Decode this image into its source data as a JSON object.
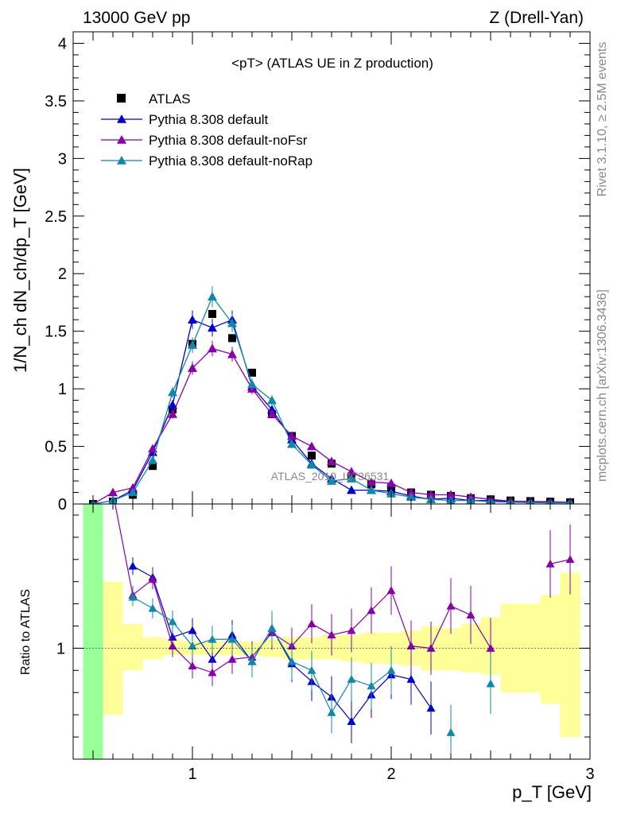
{
  "header": {
    "left": "13000 GeV pp",
    "right": "Z (Drell-Yan)"
  },
  "side": {
    "rivet": "Rivet 3.1.10, ≥ 2.5M events",
    "site": "mcplots.cern.ch [arXiv:1306.3436]"
  },
  "watermark": "ATLAS_2019_I1736531",
  "chart_data": [
    {
      "type": "line",
      "panel": "main",
      "title": "<pT> (ATLAS UE in Z production)",
      "ylabel": "1/N_ch dN_ch/dp_T [GeV]",
      "xlim": [
        0.4,
        3.0
      ],
      "ylim": [
        0,
        4.1
      ],
      "y_ticks": [
        0,
        0.5,
        1,
        1.5,
        2,
        2.5,
        3,
        3.5,
        4
      ],
      "x": [
        0.5,
        0.6,
        0.7,
        0.8,
        0.9,
        1.0,
        1.1,
        1.2,
        1.3,
        1.4,
        1.5,
        1.6,
        1.7,
        1.8,
        1.9,
        2.0,
        2.1,
        2.2,
        2.3,
        2.4,
        2.5,
        2.6,
        2.7,
        2.8,
        2.9
      ],
      "series": [
        {
          "name": "ATLAS",
          "color": "#000000",
          "marker": "square",
          "values": [
            0.0,
            0.02,
            0.08,
            0.33,
            0.82,
            1.39,
            1.65,
            1.44,
            1.14,
            0.78,
            0.59,
            0.42,
            0.35,
            0.24,
            0.17,
            0.14,
            0.1,
            0.08,
            0.07,
            0.05,
            0.04,
            0.03,
            0.025,
            0.02,
            0.015
          ]
        },
        {
          "name": "Pythia 8.308 default",
          "color": "#0000cc",
          "marker": "triangle",
          "values": [
            0.0,
            0.03,
            0.12,
            0.45,
            0.86,
            1.6,
            1.53,
            1.6,
            1.02,
            0.82,
            0.56,
            0.35,
            0.22,
            0.12,
            0.12,
            0.11,
            0.07,
            0.04,
            0.05,
            0.03,
            0.03,
            0.02,
            0.01,
            0.018,
            0.01
          ]
        },
        {
          "name": "Pythia 8.308 default-noFsr",
          "color": "#8800aa",
          "marker": "triangle",
          "values": [
            0.0,
            0.1,
            0.14,
            0.48,
            0.78,
            1.18,
            1.35,
            1.3,
            1.0,
            0.78,
            0.59,
            0.5,
            0.37,
            0.28,
            0.19,
            0.18,
            0.1,
            0.08,
            0.08,
            0.06,
            0.04,
            0.025,
            0.022,
            0.02,
            0.015
          ]
        },
        {
          "name": "Pythia 8.308 default-noRap",
          "color": "#1188aa",
          "marker": "triangle",
          "values": [
            0.0,
            0.03,
            0.1,
            0.38,
            0.97,
            1.38,
            1.8,
            1.57,
            1.04,
            0.9,
            0.52,
            0.34,
            0.2,
            0.22,
            0.12,
            0.09,
            0.06,
            0.04,
            0.03,
            0.03,
            0.02,
            0.015,
            0.012,
            0.01,
            0.01
          ]
        }
      ]
    },
    {
      "type": "line",
      "panel": "ratio",
      "ylabel": "Ratio to ATLAS",
      "xlabel": "p_T [GeV]",
      "xlim": [
        0.4,
        3.0
      ],
      "ylim": [
        0.5,
        1.65
      ],
      "x_ticks": [
        1,
        2,
        3
      ],
      "y_ticks": [
        1
      ],
      "x": [
        0.5,
        0.6,
        0.7,
        0.8,
        0.9,
        1.0,
        1.1,
        1.2,
        1.3,
        1.4,
        1.5,
        1.6,
        1.7,
        1.8,
        1.9,
        2.0,
        2.1,
        2.2,
        2.3,
        2.4,
        2.5,
        2.6,
        2.7,
        2.8,
        2.9
      ],
      "uncertainty_band": {
        "colors": {
          "stat": "#ffff99",
          "leading": "#99ff99"
        },
        "bins": [
          {
            "lo": 0.45,
            "hi": 0.55,
            "down": 0.5,
            "up": 1.65,
            "color": "#99ff99"
          },
          {
            "lo": 0.55,
            "hi": 0.65,
            "down": 0.7,
            "up": 1.3
          },
          {
            "lo": 0.65,
            "hi": 0.75,
            "down": 0.9,
            "up": 1.11
          },
          {
            "lo": 0.75,
            "hi": 0.85,
            "down": 0.95,
            "up": 1.05
          },
          {
            "lo": 0.85,
            "hi": 0.95,
            "down": 0.97,
            "up": 1.04
          },
          {
            "lo": 0.95,
            "hi": 1.05,
            "down": 0.97,
            "up": 1.03
          },
          {
            "lo": 1.05,
            "hi": 1.15,
            "down": 0.97,
            "up": 1.03
          },
          {
            "lo": 1.15,
            "hi": 1.25,
            "down": 0.97,
            "up": 1.03
          },
          {
            "lo": 1.25,
            "hi": 1.35,
            "down": 0.97,
            "up": 1.03
          },
          {
            "lo": 1.35,
            "hi": 1.45,
            "down": 0.96,
            "up": 1.04
          },
          {
            "lo": 1.45,
            "hi": 1.55,
            "down": 0.95,
            "up": 1.05
          },
          {
            "lo": 1.55,
            "hi": 1.65,
            "down": 0.95,
            "up": 1.05
          },
          {
            "lo": 1.65,
            "hi": 1.75,
            "down": 0.95,
            "up": 1.06
          },
          {
            "lo": 1.75,
            "hi": 1.85,
            "down": 0.94,
            "up": 1.06
          },
          {
            "lo": 1.85,
            "hi": 1.95,
            "down": 0.93,
            "up": 1.07
          },
          {
            "lo": 1.95,
            "hi": 2.05,
            "down": 0.93,
            "up": 1.07
          },
          {
            "lo": 2.05,
            "hi": 2.15,
            "down": 0.92,
            "up": 1.08
          },
          {
            "lo": 2.15,
            "hi": 2.25,
            "down": 0.9,
            "up": 1.1
          },
          {
            "lo": 2.25,
            "hi": 2.35,
            "down": 0.9,
            "up": 1.09
          },
          {
            "lo": 2.35,
            "hi": 2.45,
            "down": 0.89,
            "up": 1.11
          },
          {
            "lo": 2.45,
            "hi": 2.55,
            "down": 0.88,
            "up": 1.14
          },
          {
            "lo": 2.55,
            "hi": 2.65,
            "down": 0.8,
            "up": 1.2
          },
          {
            "lo": 2.65,
            "hi": 2.75,
            "down": 0.8,
            "up": 1.2
          },
          {
            "lo": 2.75,
            "hi": 2.85,
            "down": 0.75,
            "up": 1.24
          },
          {
            "lo": 2.85,
            "hi": 2.95,
            "down": 0.6,
            "up": 1.34
          }
        ]
      },
      "series": [
        {
          "name": "Pythia 8.308 default",
          "color": "#0000cc",
          "values": [
            null,
            null,
            1.37,
            1.32,
            1.05,
            1.08,
            0.95,
            1.06,
            0.94,
            1.09,
            0.93,
            0.85,
            0.78,
            0.67,
            0.79,
            0.88,
            0.86,
            0.73,
            null,
            null,
            null,
            null,
            null,
            null,
            null
          ]
        },
        {
          "name": "Pythia 8.308 default-noFsr",
          "color": "#8800aa",
          "values": [
            null,
            1.7,
            1.24,
            1.31,
            1.01,
            0.92,
            0.89,
            0.95,
            0.96,
            1.07,
            1.01,
            1.11,
            1.06,
            1.08,
            1.17,
            1.26,
            1.01,
            1.0,
            1.19,
            1.15,
            1.0,
            null,
            null,
            1.38,
            1.4
          ]
        },
        {
          "name": "Pythia 8.308 default-noRap",
          "color": "#1188aa",
          "values": [
            null,
            null,
            1.23,
            1.18,
            1.12,
            1.01,
            1.04,
            1.04,
            0.94,
            1.09,
            0.94,
            0.9,
            0.71,
            0.86,
            0.83,
            0.9,
            null,
            null,
            0.62,
            null,
            0.84,
            null,
            null,
            null,
            null
          ]
        }
      ]
    }
  ]
}
